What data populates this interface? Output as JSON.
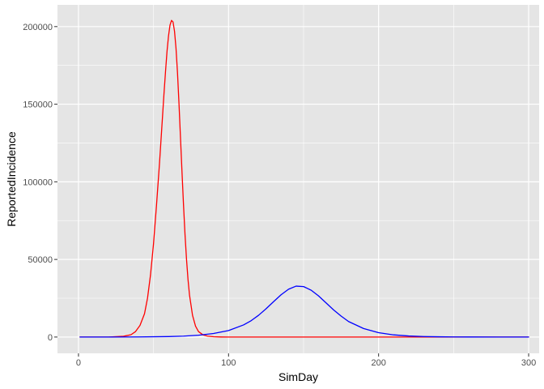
{
  "chart_data": {
    "type": "line",
    "title": "",
    "xlabel": "SimDay",
    "ylabel": "ReportedIncidence",
    "xlim": [
      -14,
      307
    ],
    "ylim": [
      -10500,
      214000
    ],
    "x_ticks": [
      0,
      100,
      200,
      300
    ],
    "x_tick_labels": [
      "0",
      "100",
      "200",
      "300"
    ],
    "x_minor_ticks": [
      50,
      150,
      250
    ],
    "y_ticks": [
      0,
      50000,
      100000,
      150000,
      200000
    ],
    "y_tick_labels": [
      "0",
      "50000",
      "100000",
      "150000",
      "200000"
    ],
    "y_minor_ticks": [
      25000,
      75000,
      125000,
      175000
    ],
    "grid": true,
    "legend": "none",
    "colors": {
      "panel": "#e5e5e5",
      "grid": "#ffffff",
      "tick": "#333333",
      "red_series": "#ff0000",
      "blue_series": "#0000ff"
    },
    "series": [
      {
        "color": "#ff0000",
        "x": [
          1,
          10,
          20,
          30,
          35,
          38,
          41,
          44,
          46,
          48,
          50,
          52,
          54,
          56,
          57,
          58,
          59,
          60,
          61,
          62,
          63,
          64,
          65,
          66,
          67,
          68,
          69,
          70,
          71,
          72,
          73,
          74,
          76,
          78,
          80,
          83,
          86,
          90,
          95,
          100,
          120,
          150,
          200,
          300
        ],
        "y": [
          0,
          0,
          0,
          500,
          1500,
          3500,
          7500,
          15000,
          25000,
          40000,
          60000,
          85000,
          112000,
          142000,
          157000,
          171000,
          184000,
          194000,
          201000,
          204000,
          203000,
          197000,
          186000,
          170000,
          150000,
          128000,
          106000,
          85000,
          66000,
          50000,
          37000,
          27000,
          14000,
          7000,
          3500,
          1400,
          600,
          200,
          50,
          0,
          0,
          0,
          0,
          0
        ]
      },
      {
        "color": "#0000ff",
        "x": [
          1,
          20,
          40,
          60,
          70,
          80,
          90,
          100,
          110,
          115,
          120,
          125,
          130,
          135,
          140,
          145,
          150,
          155,
          160,
          165,
          170,
          175,
          180,
          190,
          200,
          210,
          220,
          230,
          240,
          250,
          260,
          280,
          300
        ],
        "y": [
          0,
          20,
          80,
          300,
          600,
          1200,
          2300,
          4200,
          7800,
          10500,
          14000,
          18200,
          22800,
          27200,
          30800,
          32800,
          32500,
          30200,
          26500,
          22000,
          17500,
          13500,
          10000,
          5500,
          2800,
          1400,
          700,
          350,
          170,
          80,
          40,
          10,
          0
        ]
      }
    ]
  }
}
